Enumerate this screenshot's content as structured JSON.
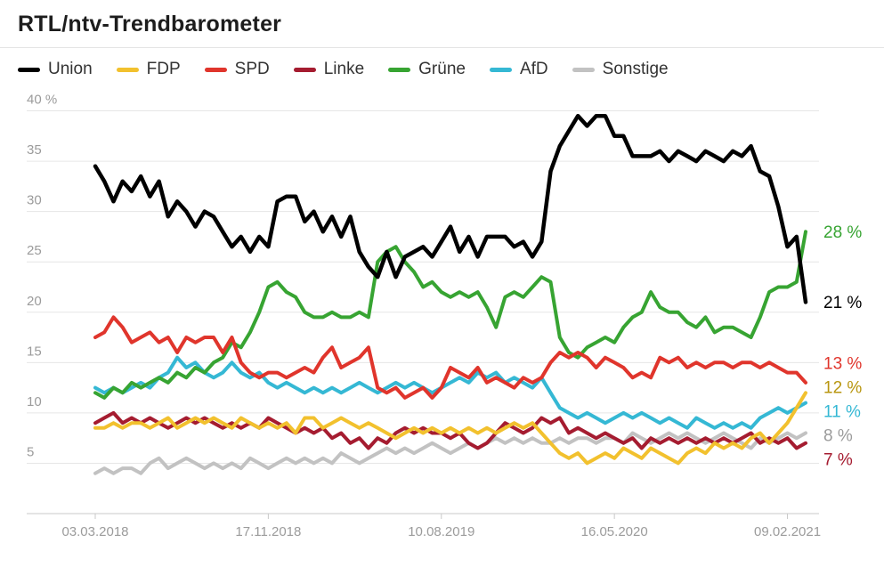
{
  "title": "RTL/ntv-Trendbarometer",
  "chart_data": {
    "type": "line",
    "title": "RTL/ntv-Trendbarometer",
    "grid": true,
    "legend_position": "top",
    "ylim": [
      0,
      42
    ],
    "y_ticks": [
      5,
      10,
      15,
      20,
      25,
      30,
      35,
      40
    ],
    "y_tick_labels": [
      "5",
      "10",
      "15",
      "20",
      "25",
      "30",
      "35",
      "40 %"
    ],
    "x_tick_labels": [
      "03.03.2018",
      "17.11.2018",
      "10.08.2019",
      "16.05.2020",
      "09.02.2021"
    ],
    "x_tick_indices": [
      0,
      19,
      38,
      57,
      76
    ],
    "series": [
      {
        "name": "Union",
        "color": "#000000",
        "end_label": "21 %",
        "values": [
          34.5,
          33,
          31,
          33,
          32,
          33.5,
          31.5,
          33,
          29.5,
          31,
          30,
          28.5,
          30,
          29.5,
          28,
          26.5,
          27.5,
          26,
          27.5,
          26.5,
          31,
          31.5,
          31.5,
          29,
          30,
          28,
          29.5,
          27.5,
          29.5,
          26,
          24.5,
          23.5,
          26,
          23.5,
          25.5,
          26,
          26.5,
          25.5,
          27,
          28.5,
          26,
          27.5,
          25.5,
          27.5,
          27.5,
          27.5,
          26.5,
          27,
          25.5,
          27,
          34,
          36.5,
          38,
          39.5,
          38.5,
          39.5,
          39.5,
          37.5,
          37.5,
          35.5,
          35.5,
          35.5,
          36,
          35,
          36,
          35.5,
          35,
          36,
          35.5,
          35,
          36,
          35.5,
          36.5,
          34,
          33.5,
          30.5,
          26.5,
          27.5,
          21
        ]
      },
      {
        "name": "FDP",
        "color": "#f2c12e",
        "label_color": "#b8960f",
        "end_label": "12 %",
        "values": [
          8.5,
          8.5,
          9,
          8.5,
          9,
          9,
          8.5,
          9,
          9.5,
          8.5,
          9,
          9.5,
          9,
          9.5,
          9,
          8.5,
          9.5,
          9,
          8.5,
          9,
          8.5,
          9,
          8,
          9.5,
          9.5,
          8.5,
          9,
          9.5,
          9,
          8.5,
          9,
          8.5,
          8,
          7.5,
          8,
          8.5,
          8,
          8.5,
          8,
          8.5,
          8,
          8.5,
          8,
          8.5,
          8,
          8.5,
          9,
          8.5,
          9,
          8,
          7,
          6,
          5.5,
          6,
          5,
          5.5,
          6,
          5.5,
          6.5,
          6,
          5.5,
          6.5,
          6,
          5.5,
          5,
          6,
          6.5,
          6,
          7,
          6.5,
          7,
          6.5,
          7.5,
          8,
          7,
          8,
          9,
          10.5,
          12
        ]
      },
      {
        "name": "SPD",
        "color": "#e0352c",
        "end_label": "13 %",
        "values": [
          17.5,
          18,
          19.5,
          18.5,
          17,
          17.5,
          18,
          17,
          17.5,
          16,
          17.5,
          17,
          17.5,
          17.5,
          16,
          17.5,
          15,
          14,
          13.5,
          14,
          14,
          13.5,
          14,
          14.5,
          14,
          15.5,
          16.5,
          14.5,
          15,
          15.5,
          16.5,
          12.5,
          12,
          12.5,
          11.5,
          12,
          12.5,
          11.5,
          12.5,
          14.5,
          14,
          13.5,
          14.5,
          13,
          13.5,
          13,
          12.5,
          13.5,
          13,
          13.5,
          15,
          16,
          15.5,
          16,
          15.5,
          14.5,
          15.5,
          15,
          14.5,
          13.5,
          14,
          13.5,
          15.5,
          15,
          15.5,
          14.5,
          15,
          14.5,
          15,
          15,
          14.5,
          15,
          15,
          14.5,
          15,
          14.5,
          14,
          14,
          13
        ]
      },
      {
        "name": "Linke",
        "color": "#a51c30",
        "end_label": "7 %",
        "values": [
          9,
          9.5,
          10,
          9,
          9.5,
          9,
          9.5,
          9,
          8.5,
          9,
          9.5,
          9,
          9.5,
          9,
          8.5,
          9,
          8.5,
          9,
          8.5,
          9.5,
          9,
          8.5,
          8,
          8.5,
          8,
          8.5,
          7.5,
          8,
          7,
          7.5,
          6.5,
          7.5,
          7,
          8,
          8.5,
          8,
          8.5,
          8,
          8,
          7.5,
          8,
          7,
          6.5,
          7,
          8,
          9,
          8.5,
          8,
          8.5,
          9.5,
          9,
          9.5,
          8,
          8.5,
          8,
          7.5,
          8,
          7.5,
          7,
          7.5,
          6.5,
          7.5,
          7,
          7.5,
          7,
          7.5,
          7,
          7.5,
          7,
          7.5,
          7,
          7.5,
          8,
          7,
          7.5,
          7,
          7.5,
          6.5,
          7
        ]
      },
      {
        "name": "Grüne",
        "color": "#37a432",
        "end_label": "28 %",
        "values": [
          12,
          11.5,
          12.5,
          12,
          13,
          12.5,
          13,
          13.5,
          13,
          14,
          13.5,
          14.5,
          14,
          15,
          15.5,
          17,
          16.5,
          18,
          20,
          22.5,
          23,
          22,
          21.5,
          20,
          19.5,
          19.5,
          20,
          19.5,
          19.5,
          20,
          19.5,
          25,
          26,
          26.5,
          25,
          24,
          22.5,
          23,
          22,
          21.5,
          22,
          21.5,
          22,
          20.5,
          18.5,
          21.5,
          22,
          21.5,
          22.5,
          23.5,
          23,
          17.5,
          16,
          15.5,
          16.5,
          17,
          17.5,
          17,
          18.5,
          19.5,
          20,
          22,
          20.5,
          20,
          20,
          19,
          18.5,
          19.5,
          18,
          18.5,
          18.5,
          18,
          17.5,
          19.5,
          22,
          22.5,
          22.5,
          23,
          28
        ]
      },
      {
        "name": "AfD",
        "color": "#35b8d4",
        "end_label": "11 %",
        "values": [
          12.5,
          12,
          12.5,
          12,
          12.5,
          13,
          12.5,
          13.5,
          14,
          15.5,
          14.5,
          15,
          14,
          13.5,
          14,
          15,
          14,
          13.5,
          14,
          13,
          12.5,
          13,
          12.5,
          12,
          12.5,
          12,
          12.5,
          12,
          12.5,
          13,
          12.5,
          12,
          12.5,
          13,
          12.5,
          13,
          12.5,
          12,
          12.5,
          13,
          13.5,
          13,
          14,
          13.5,
          14,
          13,
          13.5,
          13,
          12.5,
          13.5,
          12,
          10.5,
          10,
          9.5,
          10,
          9.5,
          9,
          9.5,
          10,
          9.5,
          10,
          9.5,
          9,
          9.5,
          9,
          8.5,
          9.5,
          9,
          8.5,
          9,
          8.5,
          9,
          8.5,
          9.5,
          10,
          10.5,
          10,
          10.5,
          11
        ]
      },
      {
        "name": "Sonstige",
        "color": "#c2c2c2",
        "label_color": "#9b9b9b",
        "end_label": "8 %",
        "values": [
          4,
          4.5,
          4,
          4.5,
          4.5,
          4,
          5,
          5.5,
          4.5,
          5,
          5.5,
          5,
          4.5,
          5,
          4.5,
          5,
          4.5,
          5.5,
          5,
          4.5,
          5,
          5.5,
          5,
          5.5,
          5,
          5.5,
          5,
          6,
          5.5,
          5,
          5.5,
          6,
          6.5,
          6,
          6.5,
          6,
          6.5,
          7,
          6.5,
          6,
          6.5,
          7,
          6.5,
          7,
          7.5,
          7,
          7.5,
          7,
          7.5,
          7,
          7,
          7.5,
          7,
          7.5,
          7.5,
          7,
          7.5,
          7.5,
          7,
          8,
          7.5,
          7,
          7.5,
          8,
          7.5,
          8,
          7.5,
          7,
          7.5,
          8,
          7.5,
          7,
          6.5,
          7.5,
          7,
          7.5,
          8,
          7.5,
          8
        ]
      }
    ]
  },
  "style": {
    "grid_color": "#e6e6e6",
    "axis_color": "#c9c9c9",
    "tick_text_color": "#9b9b9b"
  }
}
